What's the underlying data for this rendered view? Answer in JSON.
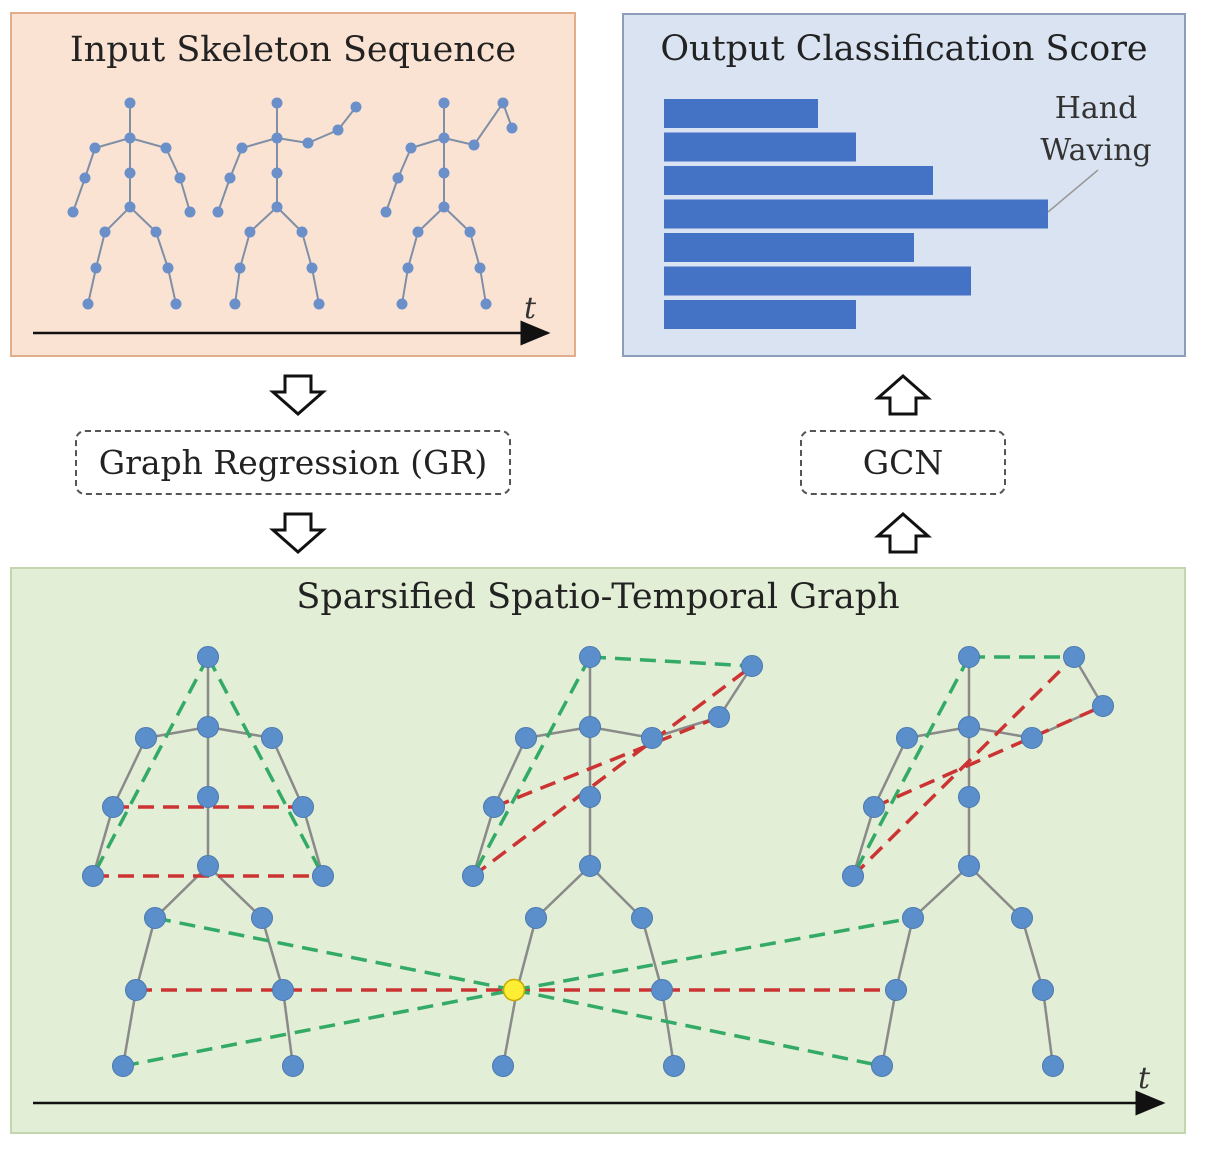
{
  "input_panel": {
    "title": "Input Skeleton Sequence",
    "time_label": "t"
  },
  "output_panel": {
    "title": "Output Classification Score",
    "highlight_label": [
      "Hand",
      "Waving"
    ],
    "bar_color": "#4472c4",
    "scores": [
      0.4,
      0.5,
      0.7,
      1.0,
      0.65,
      0.8,
      0.5
    ],
    "highlight_index": 3
  },
  "gr_step": {
    "label": "Graph Regression (GR)"
  },
  "gcn_step": {
    "label": "GCN"
  },
  "graph_panel": {
    "title": "Sparsified Spatio-Temporal Graph",
    "time_label": "t",
    "spatial_edge_color": "#8a8a8a",
    "red_dash_color": "#cc3333",
    "green_dash_color": "#33aa66",
    "joint_color": "#5b8fcb",
    "center_joint_color": "#ffee33"
  }
}
